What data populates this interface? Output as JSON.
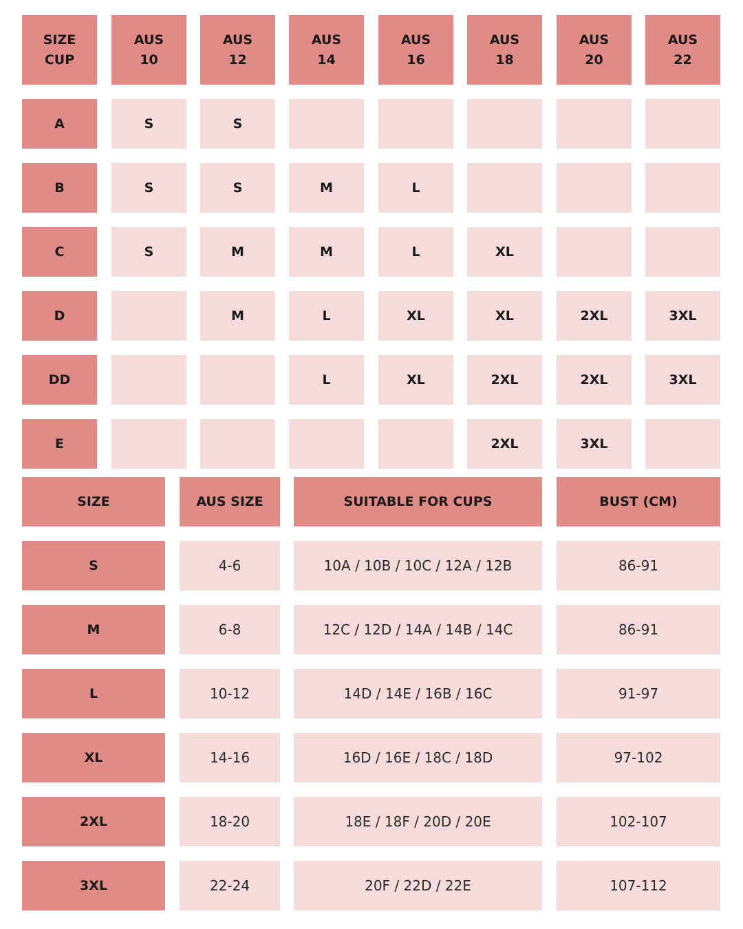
{
  "top": {
    "header": [
      [
        "SIZE",
        "CUP"
      ],
      [
        "AUS",
        "10"
      ],
      [
        "AUS",
        "12"
      ],
      [
        "AUS",
        "14"
      ],
      [
        "AUS",
        "16"
      ],
      [
        "AUS",
        "18"
      ],
      [
        "AUS",
        "20"
      ],
      [
        "AUS",
        "22"
      ]
    ],
    "rows": [
      {
        "cup": "A",
        "cells": [
          "S",
          "S",
          null,
          null,
          null,
          null,
          null
        ]
      },
      {
        "cup": "B",
        "cells": [
          "S",
          "S",
          "M",
          "L",
          null,
          null,
          null
        ]
      },
      {
        "cup": "C",
        "cells": [
          "S",
          "M",
          "M",
          "L",
          "XL",
          null,
          null
        ]
      },
      {
        "cup": "D",
        "cells": [
          null,
          "M",
          "L",
          "XL",
          "XL",
          "2XL",
          "3XL"
        ]
      },
      {
        "cup": "DD",
        "cells": [
          null,
          null,
          "L",
          "XL",
          "2XL",
          "2XL",
          "3XL"
        ]
      },
      {
        "cup": "E",
        "cells": [
          null,
          null,
          null,
          null,
          "2XL",
          "3XL",
          null
        ]
      }
    ]
  },
  "bottom": {
    "header": [
      "SIZE",
      "AUS SIZE",
      "SUITABLE FOR CUPS",
      "BUST (CM)"
    ],
    "rows": [
      [
        "S",
        "4-6",
        "10A / 10B / 10C / 12A / 12B",
        "86-91"
      ],
      [
        "M",
        "6-8",
        "12C / 12D / 14A / 14B / 14C",
        "86-91"
      ],
      [
        "L",
        "10-12",
        "14D / 14E / 16B / 16C",
        "91-97"
      ],
      [
        "XL",
        "14-16",
        "16D / 16E / 18C / 18D",
        "97-102"
      ],
      [
        "2XL",
        "18-20",
        "18E / 18F / 20D / 20E",
        "102-107"
      ],
      [
        "3XL",
        "22-24",
        "20F / 22D / 22E",
        "107-112"
      ]
    ]
  }
}
